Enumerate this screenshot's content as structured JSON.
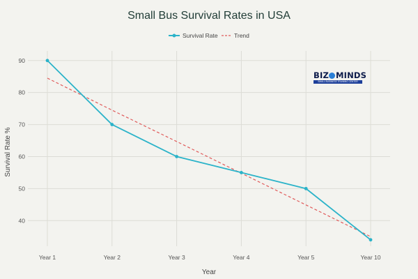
{
  "chart_data": {
    "type": "line",
    "title": "Small Bus Survival Rates in USA",
    "xlabel": "Year",
    "ylabel": "Survival Rate %",
    "categories": [
      "Year 1",
      "Year 2",
      "Year 3",
      "Year 4",
      "Year 5",
      "Year 10"
    ],
    "series": [
      {
        "name": "Survival Rate",
        "values": [
          90,
          70,
          60,
          55,
          50,
          34
        ],
        "color": "#2bb3c9",
        "style": "solid",
        "markers": true
      },
      {
        "name": "Trend",
        "values": [
          84.5,
          74.5,
          64.7,
          54.8,
          44.9,
          35.0
        ],
        "color": "#e05a5a",
        "style": "dashed",
        "markers": false
      }
    ],
    "yticks": [
      40,
      50,
      60,
      70,
      80,
      90
    ],
    "ylim": [
      32,
      93
    ],
    "grid": true,
    "legend_position": "top-center"
  },
  "logo": {
    "name": "BIZ MINDS",
    "left": "BIZ",
    "right": "MINDS",
    "tagline": "SMALL BUSINESS TRAINING CENTER",
    "colors": {
      "text": "#0d1b4a",
      "bar": "#1d3f9a",
      "globe": "#2a7fd6"
    }
  },
  "colors": {
    "background": "#f3f3ef",
    "grid": "#dcdcd6",
    "title": "#1f3b35"
  }
}
